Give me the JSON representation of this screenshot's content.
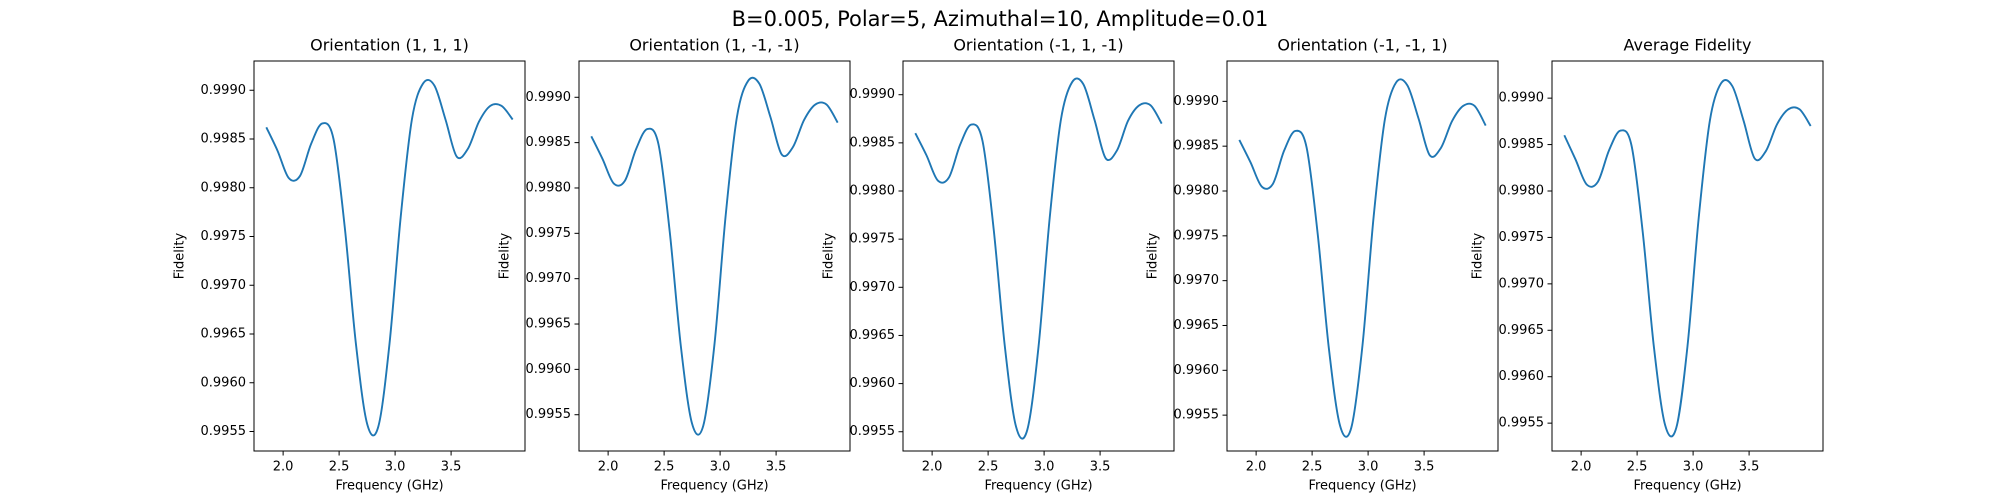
{
  "title": "B=0.005, Polar=5, Azimuthal=10, Amplitude=0.01",
  "chart_data": [
    {
      "type": "line",
      "title": "Orientation (1, 1, 1)",
      "xlabel": "Frequency (GHz)",
      "ylabel": "Fidelity",
      "color": "#1f77b4",
      "x": [
        1.85,
        1.95,
        2.05,
        2.15,
        2.25,
        2.35,
        2.45,
        2.55,
        2.65,
        2.75,
        2.85,
        2.95,
        3.05,
        3.15,
        3.25,
        3.35,
        3.45,
        3.55,
        3.65,
        3.75,
        3.85,
        3.95,
        4.05
      ],
      "values": [
        0.99862,
        0.99838,
        0.9981,
        0.99812,
        0.99845,
        0.99866,
        0.9985,
        0.9976,
        0.9964,
        0.99558,
        0.99555,
        0.9964,
        0.9977,
        0.9987,
        0.99907,
        0.99905,
        0.9987,
        0.99832,
        0.9984,
        0.99868,
        0.99884,
        0.99884,
        0.9987
      ],
      "xlim": [
        1.74,
        4.16
      ],
      "ylim": [
        0.9953,
        0.9993
      ],
      "xticks": [
        {
          "value": 2,
          "label": "2.0"
        },
        2.5,
        {
          "value": 3,
          "label": "3.0"
        },
        3.5
      ],
      "yticks": [
        0.9955,
        {
          "value": 0.996,
          "label": "0.9960"
        },
        0.9965,
        {
          "value": 0.997,
          "label": "0.9970"
        },
        0.9975,
        {
          "value": 0.998,
          "label": "0.9980"
        },
        0.9985,
        {
          "value": 0.999,
          "label": "0.9990"
        }
      ]
    },
    {
      "type": "line",
      "title": "Orientation (1, -1, -1)",
      "xlabel": "Frequency (GHz)",
      "ylabel": "Fidelity",
      "color": "#1f77b4",
      "x": [
        1.85,
        1.95,
        2.05,
        2.15,
        2.25,
        2.35,
        2.45,
        2.55,
        2.65,
        2.75,
        2.85,
        2.95,
        3.05,
        3.15,
        3.25,
        3.35,
        3.45,
        3.55,
        3.65,
        3.75,
        3.85,
        3.95,
        4.05
      ],
      "values": [
        0.99857,
        0.99832,
        0.99805,
        0.99808,
        0.99843,
        0.99865,
        0.99848,
        0.99752,
        0.99625,
        0.9954,
        0.99538,
        0.99628,
        0.9977,
        0.99878,
        0.99918,
        0.99915,
        0.99878,
        0.99837,
        0.99845,
        0.99875,
        0.99892,
        0.99892,
        0.99872
      ],
      "xlim": [
        1.74,
        4.16
      ],
      "ylim": [
        0.9951,
        0.9994
      ],
      "xticks": [
        {
          "value": 2,
          "label": "2.0"
        },
        2.5,
        {
          "value": 3,
          "label": "3.0"
        },
        3.5
      ],
      "yticks": [
        0.9955,
        {
          "value": 0.996,
          "label": "0.9960"
        },
        0.9965,
        {
          "value": 0.997,
          "label": "0.9970"
        },
        0.9975,
        {
          "value": 0.998,
          "label": "0.9980"
        },
        0.9985,
        {
          "value": 0.999,
          "label": "0.9990"
        }
      ]
    },
    {
      "type": "line",
      "title": "Orientation (-1, 1, -1)",
      "xlabel": "Frequency (GHz)",
      "ylabel": "Fidelity",
      "color": "#1f77b4",
      "x": [
        1.85,
        1.95,
        2.05,
        2.15,
        2.25,
        2.35,
        2.45,
        2.55,
        2.65,
        2.75,
        2.85,
        2.95,
        3.05,
        3.15,
        3.25,
        3.35,
        3.45,
        3.55,
        3.65,
        3.75,
        3.85,
        3.95,
        4.05
      ],
      "values": [
        0.9986,
        0.99837,
        0.99811,
        0.99814,
        0.99848,
        0.99869,
        0.99852,
        0.9976,
        0.99638,
        0.99555,
        0.99552,
        0.99638,
        0.99772,
        0.99874,
        0.99913,
        0.99911,
        0.99874,
        0.99834,
        0.99842,
        0.99873,
        0.99889,
        0.99889,
        0.9987
      ],
      "xlim": [
        1.74,
        4.16
      ],
      "ylim": [
        0.9953,
        0.99935
      ],
      "xticks": [
        {
          "value": 2,
          "label": "2.0"
        },
        2.5,
        {
          "value": 3,
          "label": "3.0"
        },
        3.5
      ],
      "yticks": [
        0.9955,
        {
          "value": 0.996,
          "label": "0.9960"
        },
        0.9965,
        {
          "value": 0.997,
          "label": "0.9970"
        },
        0.9975,
        {
          "value": 0.998,
          "label": "0.9980"
        },
        0.9985,
        {
          "value": 0.999,
          "label": "0.9990"
        }
      ]
    },
    {
      "type": "line",
      "title": "Orientation (-1, -1, 1)",
      "xlabel": "Frequency (GHz)",
      "ylabel": "Fidelity",
      "color": "#1f77b4",
      "x": [
        1.85,
        1.95,
        2.05,
        2.15,
        2.25,
        2.35,
        2.45,
        2.55,
        2.65,
        2.75,
        2.85,
        2.95,
        3.05,
        3.15,
        3.25,
        3.35,
        3.45,
        3.55,
        3.65,
        3.75,
        3.85,
        3.95,
        4.05
      ],
      "values": [
        0.99857,
        0.99832,
        0.99805,
        0.99808,
        0.99845,
        0.99867,
        0.99849,
        0.99752,
        0.99624,
        0.99538,
        0.99536,
        0.99628,
        0.99772,
        0.9988,
        0.99921,
        0.99918,
        0.99881,
        0.9984,
        0.99848,
        0.99878,
        0.99895,
        0.99895,
        0.99873
      ],
      "xlim": [
        1.74,
        4.16
      ],
      "ylim": [
        0.9951,
        0.99945
      ],
      "xticks": [
        {
          "value": 2,
          "label": "2.0"
        },
        2.5,
        {
          "value": 3,
          "label": "3.0"
        },
        3.5
      ],
      "yticks": [
        0.9955,
        {
          "value": 0.996,
          "label": "0.9960"
        },
        0.9965,
        {
          "value": 0.997,
          "label": "0.9970"
        },
        0.9975,
        {
          "value": 0.998,
          "label": "0.9980"
        },
        0.9985,
        {
          "value": 0.999,
          "label": "0.9990"
        }
      ]
    },
    {
      "type": "line",
      "title": "Average Fidelity",
      "xlabel": "Frequency (GHz)",
      "ylabel": "Fidelity",
      "color": "#1f77b4",
      "x": [
        1.85,
        1.95,
        2.05,
        2.15,
        2.25,
        2.35,
        2.45,
        2.55,
        2.65,
        2.75,
        2.85,
        2.95,
        3.05,
        3.15,
        3.25,
        3.35,
        3.45,
        3.55,
        3.65,
        3.75,
        3.85,
        3.95,
        4.05
      ],
      "values": [
        0.9986,
        0.99834,
        0.99807,
        0.9981,
        0.99844,
        0.99865,
        0.99849,
        0.99756,
        0.99632,
        0.99548,
        0.99545,
        0.99633,
        0.99771,
        0.99876,
        0.99916,
        0.99913,
        0.99876,
        0.99835,
        0.99843,
        0.99872,
        0.99888,
        0.99888,
        0.9987
      ],
      "xlim": [
        1.74,
        4.16
      ],
      "ylim": [
        0.9952,
        0.9994
      ],
      "xticks": [
        {
          "value": 2,
          "label": "2.0"
        },
        2.5,
        {
          "value": 3,
          "label": "3.0"
        },
        3.5
      ],
      "yticks": [
        0.9955,
        {
          "value": 0.996,
          "label": "0.9960"
        },
        0.9965,
        {
          "value": 0.997,
          "label": "0.9970"
        },
        0.9975,
        {
          "value": 0.998,
          "label": "0.9980"
        },
        0.9985,
        {
          "value": 0.999,
          "label": "0.9990"
        }
      ]
    }
  ]
}
